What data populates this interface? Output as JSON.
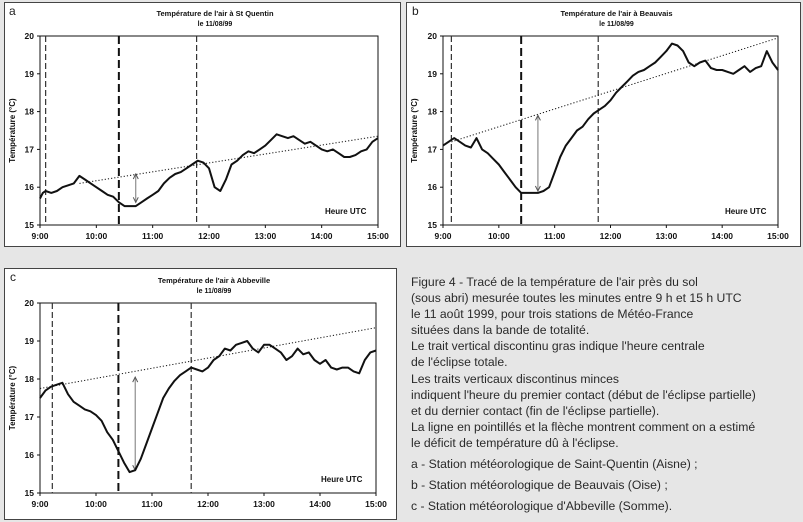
{
  "chart_data": [
    {
      "type": "line",
      "panel_label": "a",
      "title": "Température de l'air à St Quentin",
      "subtitle": "le 11/08/99",
      "ylabel": "Température (°C)",
      "xlabel": "Heure UTC",
      "ylim": [
        15,
        20
      ],
      "yticks": [
        "15",
        "16",
        "17",
        "18",
        "19",
        "20"
      ],
      "xticks": [
        "9:00",
        "10:00",
        "11:00",
        "12:00",
        "13:00",
        "14:00",
        "15:00"
      ],
      "xlim_hours": [
        9,
        15
      ],
      "vlines": [
        {
          "time": "9:06",
          "hour": 9.1,
          "style": "thin"
        },
        {
          "time": "10:24",
          "hour": 10.4,
          "style": "thick"
        },
        {
          "time": "11:47",
          "hour": 11.78,
          "style": "thin"
        }
      ],
      "trend": {
        "x": [
          9.7,
          15.0
        ],
        "y": [
          16.1,
          17.35
        ]
      },
      "arrow": {
        "x": 10.7,
        "y_top": 16.35,
        "y_bottom": 15.6
      },
      "series": [
        {
          "x": [
            9.0,
            9.05,
            9.1,
            9.2,
            9.3,
            9.4,
            9.5,
            9.6,
            9.7,
            9.8,
            9.9,
            10.0,
            10.1,
            10.2,
            10.3,
            10.4,
            10.5,
            10.6,
            10.7,
            10.8,
            10.9,
            11.0,
            11.1,
            11.2,
            11.3,
            11.4,
            11.5,
            11.6,
            11.7,
            11.8,
            11.9,
            12.0,
            12.1,
            12.2,
            12.3,
            12.4,
            12.5,
            12.6,
            12.7,
            12.8,
            12.9,
            13.0,
            13.1,
            13.2,
            13.3,
            13.4,
            13.5,
            13.6,
            13.7,
            13.8,
            13.9,
            14.0,
            14.1,
            14.2,
            14.3,
            14.4,
            14.5,
            14.6,
            14.7,
            14.8,
            14.9,
            15.0
          ],
          "y": [
            15.7,
            15.85,
            15.9,
            15.85,
            15.9,
            16.0,
            16.05,
            16.1,
            16.3,
            16.2,
            16.1,
            16.0,
            15.9,
            15.8,
            15.75,
            15.6,
            15.5,
            15.5,
            15.5,
            15.6,
            15.7,
            15.8,
            15.9,
            16.1,
            16.25,
            16.35,
            16.4,
            16.5,
            16.6,
            16.7,
            16.65,
            16.5,
            16.0,
            15.9,
            16.2,
            16.6,
            16.7,
            16.85,
            16.95,
            16.9,
            17.0,
            17.1,
            17.25,
            17.4,
            17.35,
            17.3,
            17.35,
            17.25,
            17.15,
            17.2,
            17.1,
            17.0,
            16.95,
            17.0,
            16.9,
            16.8,
            16.8,
            16.85,
            16.95,
            17.0,
            17.2,
            17.3
          ]
        }
      ]
    },
    {
      "type": "line",
      "panel_label": "b",
      "title": "Température de l'air à Beauvais",
      "subtitle": "le 11/08/99",
      "ylabel": "Température (°C)",
      "xlabel": "Heure UTC",
      "ylim": [
        15,
        20
      ],
      "yticks": [
        "15",
        "16",
        "17",
        "18",
        "19",
        "20"
      ],
      "xticks": [
        "9:00",
        "10:00",
        "11:00",
        "12:00",
        "13:00",
        "14:00",
        "15:00"
      ],
      "xlim_hours": [
        9,
        15
      ],
      "vlines": [
        {
          "time": "9:09",
          "hour": 9.15,
          "style": "thin"
        },
        {
          "time": "10:24",
          "hour": 10.4,
          "style": "thick"
        },
        {
          "time": "11:47",
          "hour": 11.78,
          "style": "thin"
        }
      ],
      "trend": {
        "x": [
          9.15,
          15.0
        ],
        "y": [
          17.2,
          19.95
        ]
      },
      "arrow": {
        "x": 10.7,
        "y_top": 17.9,
        "y_bottom": 15.9
      },
      "series": [
        {
          "x": [
            9.0,
            9.1,
            9.2,
            9.3,
            9.4,
            9.5,
            9.6,
            9.7,
            9.8,
            9.9,
            10.0,
            10.1,
            10.2,
            10.3,
            10.4,
            10.5,
            10.6,
            10.7,
            10.8,
            10.9,
            11.0,
            11.1,
            11.2,
            11.3,
            11.4,
            11.5,
            11.6,
            11.7,
            11.8,
            11.9,
            12.0,
            12.1,
            12.2,
            12.3,
            12.4,
            12.5,
            12.6,
            12.7,
            12.8,
            12.9,
            13.0,
            13.1,
            13.2,
            13.3,
            13.4,
            13.5,
            13.6,
            13.7,
            13.8,
            13.9,
            14.0,
            14.1,
            14.2,
            14.3,
            14.4,
            14.5,
            14.6,
            14.7,
            14.8,
            14.9,
            15.0
          ],
          "y": [
            17.1,
            17.2,
            17.3,
            17.2,
            17.1,
            17.05,
            17.3,
            17.0,
            16.9,
            16.75,
            16.6,
            16.4,
            16.2,
            16.0,
            15.85,
            15.85,
            15.85,
            15.85,
            15.9,
            16.0,
            16.4,
            16.8,
            17.1,
            17.3,
            17.5,
            17.6,
            17.8,
            17.95,
            18.05,
            18.15,
            18.3,
            18.5,
            18.65,
            18.8,
            18.95,
            19.05,
            19.1,
            19.2,
            19.3,
            19.45,
            19.6,
            19.8,
            19.75,
            19.6,
            19.3,
            19.2,
            19.3,
            19.35,
            19.15,
            19.1,
            19.1,
            19.05,
            19.0,
            19.1,
            19.2,
            19.05,
            19.15,
            19.2,
            19.6,
            19.3,
            19.1
          ]
        }
      ]
    },
    {
      "type": "line",
      "panel_label": "c",
      "title": "Température de l'air à Abbeville",
      "subtitle": "le 11/08/99",
      "ylabel": "Température (°C)",
      "xlabel": "Heure UTC",
      "ylim": [
        15,
        20
      ],
      "yticks": [
        "15",
        "16",
        "17",
        "18",
        "19",
        "20"
      ],
      "xticks": [
        "9:00",
        "10:00",
        "11:00",
        "12:00",
        "13:00",
        "14:00",
        "15:00"
      ],
      "xlim_hours": [
        9,
        15
      ],
      "vlines": [
        {
          "time": "9:13",
          "hour": 9.22,
          "style": "thin"
        },
        {
          "time": "10:24",
          "hour": 10.4,
          "style": "thick"
        },
        {
          "time": "11:42",
          "hour": 11.7,
          "style": "thin"
        }
      ],
      "trend": {
        "x": [
          9.0,
          15.0
        ],
        "y": [
          17.75,
          19.35
        ]
      },
      "arrow": {
        "x": 10.7,
        "y_top": 18.05,
        "y_bottom": 15.6
      },
      "series": [
        {
          "x": [
            9.0,
            9.1,
            9.2,
            9.3,
            9.4,
            9.5,
            9.6,
            9.7,
            9.8,
            9.9,
            10.0,
            10.1,
            10.2,
            10.3,
            10.4,
            10.5,
            10.6,
            10.7,
            10.8,
            10.9,
            11.0,
            11.1,
            11.2,
            11.3,
            11.4,
            11.5,
            11.6,
            11.7,
            11.8,
            11.9,
            12.0,
            12.1,
            12.2,
            12.3,
            12.4,
            12.5,
            12.6,
            12.7,
            12.8,
            12.9,
            13.0,
            13.1,
            13.2,
            13.3,
            13.4,
            13.5,
            13.6,
            13.7,
            13.8,
            13.9,
            14.0,
            14.1,
            14.2,
            14.3,
            14.4,
            14.5,
            14.6,
            14.7,
            14.8,
            14.9,
            15.0
          ],
          "y": [
            17.5,
            17.7,
            17.8,
            17.85,
            17.9,
            17.6,
            17.4,
            17.3,
            17.2,
            17.15,
            17.05,
            16.9,
            16.6,
            16.4,
            16.1,
            15.8,
            15.55,
            15.6,
            15.9,
            16.3,
            16.7,
            17.1,
            17.5,
            17.75,
            17.95,
            18.1,
            18.2,
            18.3,
            18.25,
            18.2,
            18.3,
            18.5,
            18.6,
            18.8,
            18.75,
            18.9,
            18.95,
            19.0,
            18.8,
            18.7,
            18.9,
            18.9,
            18.8,
            18.7,
            18.5,
            18.6,
            18.8,
            18.65,
            18.7,
            18.5,
            18.4,
            18.5,
            18.3,
            18.25,
            18.3,
            18.3,
            18.2,
            18.15,
            18.5,
            18.7,
            18.75
          ]
        }
      ]
    }
  ],
  "caption": {
    "lines": [
      "Figure 4 - Tracé de la température de l'air près du sol",
      "(sous abri) mesurée toutes les minutes entre 9 h et 15 h UTC",
      "le 11 août 1999, pour trois stations de Météo-France",
      "situées dans la bande de totalité.",
      "Le trait vertical discontinu gras indique l'heure centrale",
      "de l'éclipse totale.",
      "Les traits verticaux discontinus minces",
      "indiquent l'heure du premier contact (début de l'éclipse partielle)",
      " et du dernier contact (fin de l'éclipse partielle).",
      "La ligne en pointillés et la flèche montrent comment on a estimé",
      "le déficit de température dû à l'éclipse."
    ],
    "stations": [
      "a - Station météorologique de Saint-Quentin (Aisne) ;",
      "b - Station météorologique de Beauvais (Oise) ;",
      "c - Station météorologique d'Abbeville (Somme)."
    ]
  }
}
